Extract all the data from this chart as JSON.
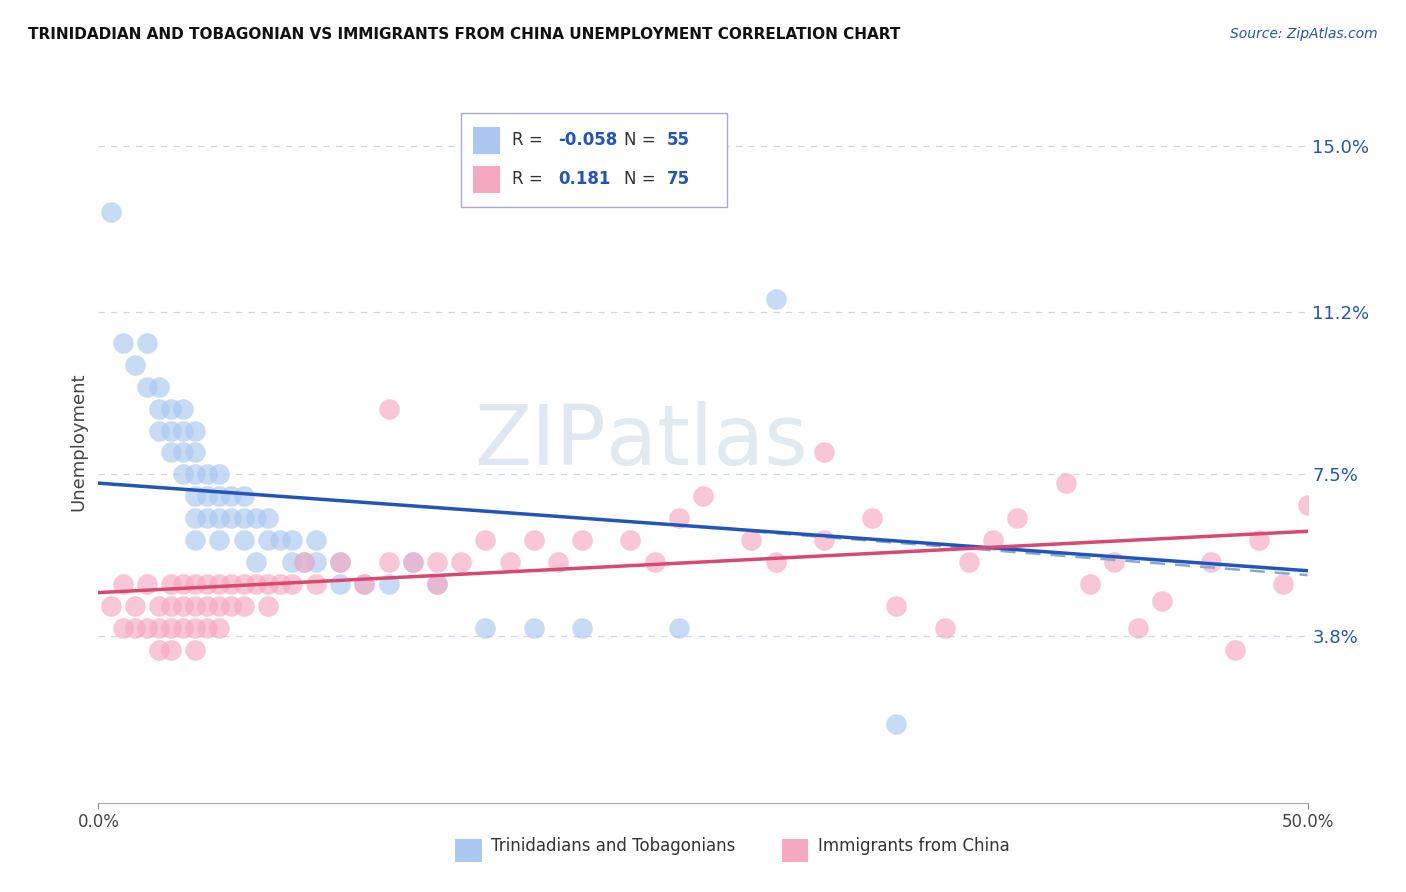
{
  "title": "TRINIDADIAN AND TOBAGONIAN VS IMMIGRANTS FROM CHINA UNEMPLOYMENT CORRELATION CHART",
  "source": "Source: ZipAtlas.com",
  "ylabel": "Unemployment",
  "xlim": [
    0.0,
    0.5
  ],
  "ylim": [
    0.0,
    0.165
  ],
  "yticks": [
    0.038,
    0.075,
    0.112,
    0.15
  ],
  "ytick_labels": [
    "3.8%",
    "7.5%",
    "11.2%",
    "15.0%"
  ],
  "xtick_positions": [
    0.0,
    0.5
  ],
  "xtick_labels": [
    "0.0%",
    "50.0%"
  ],
  "blue_color": "#aac8f0",
  "pink_color": "#f5a8c0",
  "blue_line_color": "#2255bb",
  "pink_line_color": "#d84870",
  "dashed_line_color": "#88aacc",
  "grid_color": "#c8d8e8",
  "watermark_color": "#d0dde8",
  "blue_r": -0.058,
  "blue_n": 55,
  "pink_r": 0.181,
  "pink_n": 75,
  "blue_line_x0": 0.0,
  "blue_line_y0": 0.073,
  "blue_line_x1": 0.5,
  "blue_line_y1": 0.053,
  "pink_line_x0": 0.0,
  "pink_line_y0": 0.048,
  "pink_line_x1": 0.5,
  "pink_line_y1": 0.062,
  "dash_line_x0": 0.27,
  "dash_line_y0": 0.062,
  "dash_line_x1": 0.5,
  "dash_line_y1": 0.052,
  "blue_scatter_x": [
    0.005,
    0.01,
    0.015,
    0.02,
    0.02,
    0.025,
    0.025,
    0.025,
    0.03,
    0.03,
    0.03,
    0.035,
    0.035,
    0.035,
    0.035,
    0.04,
    0.04,
    0.04,
    0.04,
    0.04,
    0.04,
    0.045,
    0.045,
    0.045,
    0.05,
    0.05,
    0.05,
    0.05,
    0.055,
    0.055,
    0.06,
    0.06,
    0.06,
    0.065,
    0.065,
    0.07,
    0.07,
    0.075,
    0.08,
    0.08,
    0.085,
    0.09,
    0.09,
    0.1,
    0.1,
    0.11,
    0.12,
    0.13,
    0.14,
    0.16,
    0.18,
    0.2,
    0.24,
    0.28,
    0.33
  ],
  "blue_scatter_y": [
    0.135,
    0.105,
    0.1,
    0.095,
    0.105,
    0.085,
    0.09,
    0.095,
    0.08,
    0.085,
    0.09,
    0.075,
    0.08,
    0.085,
    0.09,
    0.07,
    0.075,
    0.08,
    0.085,
    0.065,
    0.06,
    0.07,
    0.075,
    0.065,
    0.065,
    0.07,
    0.075,
    0.06,
    0.065,
    0.07,
    0.06,
    0.065,
    0.07,
    0.055,
    0.065,
    0.06,
    0.065,
    0.06,
    0.055,
    0.06,
    0.055,
    0.055,
    0.06,
    0.055,
    0.05,
    0.05,
    0.05,
    0.055,
    0.05,
    0.04,
    0.04,
    0.04,
    0.04,
    0.115,
    0.018
  ],
  "pink_scatter_x": [
    0.005,
    0.01,
    0.01,
    0.015,
    0.015,
    0.02,
    0.02,
    0.025,
    0.025,
    0.025,
    0.03,
    0.03,
    0.03,
    0.03,
    0.035,
    0.035,
    0.035,
    0.04,
    0.04,
    0.04,
    0.04,
    0.045,
    0.045,
    0.045,
    0.05,
    0.05,
    0.05,
    0.055,
    0.055,
    0.06,
    0.06,
    0.065,
    0.07,
    0.07,
    0.075,
    0.08,
    0.085,
    0.09,
    0.1,
    0.11,
    0.12,
    0.12,
    0.13,
    0.14,
    0.14,
    0.15,
    0.16,
    0.17,
    0.18,
    0.19,
    0.2,
    0.22,
    0.23,
    0.24,
    0.25,
    0.27,
    0.28,
    0.3,
    0.3,
    0.32,
    0.33,
    0.35,
    0.36,
    0.37,
    0.38,
    0.4,
    0.41,
    0.42,
    0.43,
    0.44,
    0.46,
    0.47,
    0.48,
    0.49,
    0.5
  ],
  "pink_scatter_y": [
    0.045,
    0.05,
    0.04,
    0.04,
    0.045,
    0.04,
    0.05,
    0.045,
    0.04,
    0.035,
    0.05,
    0.045,
    0.04,
    0.035,
    0.05,
    0.04,
    0.045,
    0.05,
    0.045,
    0.04,
    0.035,
    0.05,
    0.045,
    0.04,
    0.05,
    0.045,
    0.04,
    0.05,
    0.045,
    0.045,
    0.05,
    0.05,
    0.05,
    0.045,
    0.05,
    0.05,
    0.055,
    0.05,
    0.055,
    0.05,
    0.055,
    0.09,
    0.055,
    0.055,
    0.05,
    0.055,
    0.06,
    0.055,
    0.06,
    0.055,
    0.06,
    0.06,
    0.055,
    0.065,
    0.07,
    0.06,
    0.055,
    0.06,
    0.08,
    0.065,
    0.045,
    0.04,
    0.055,
    0.06,
    0.065,
    0.073,
    0.05,
    0.055,
    0.04,
    0.046,
    0.055,
    0.035,
    0.06,
    0.05,
    0.068
  ]
}
